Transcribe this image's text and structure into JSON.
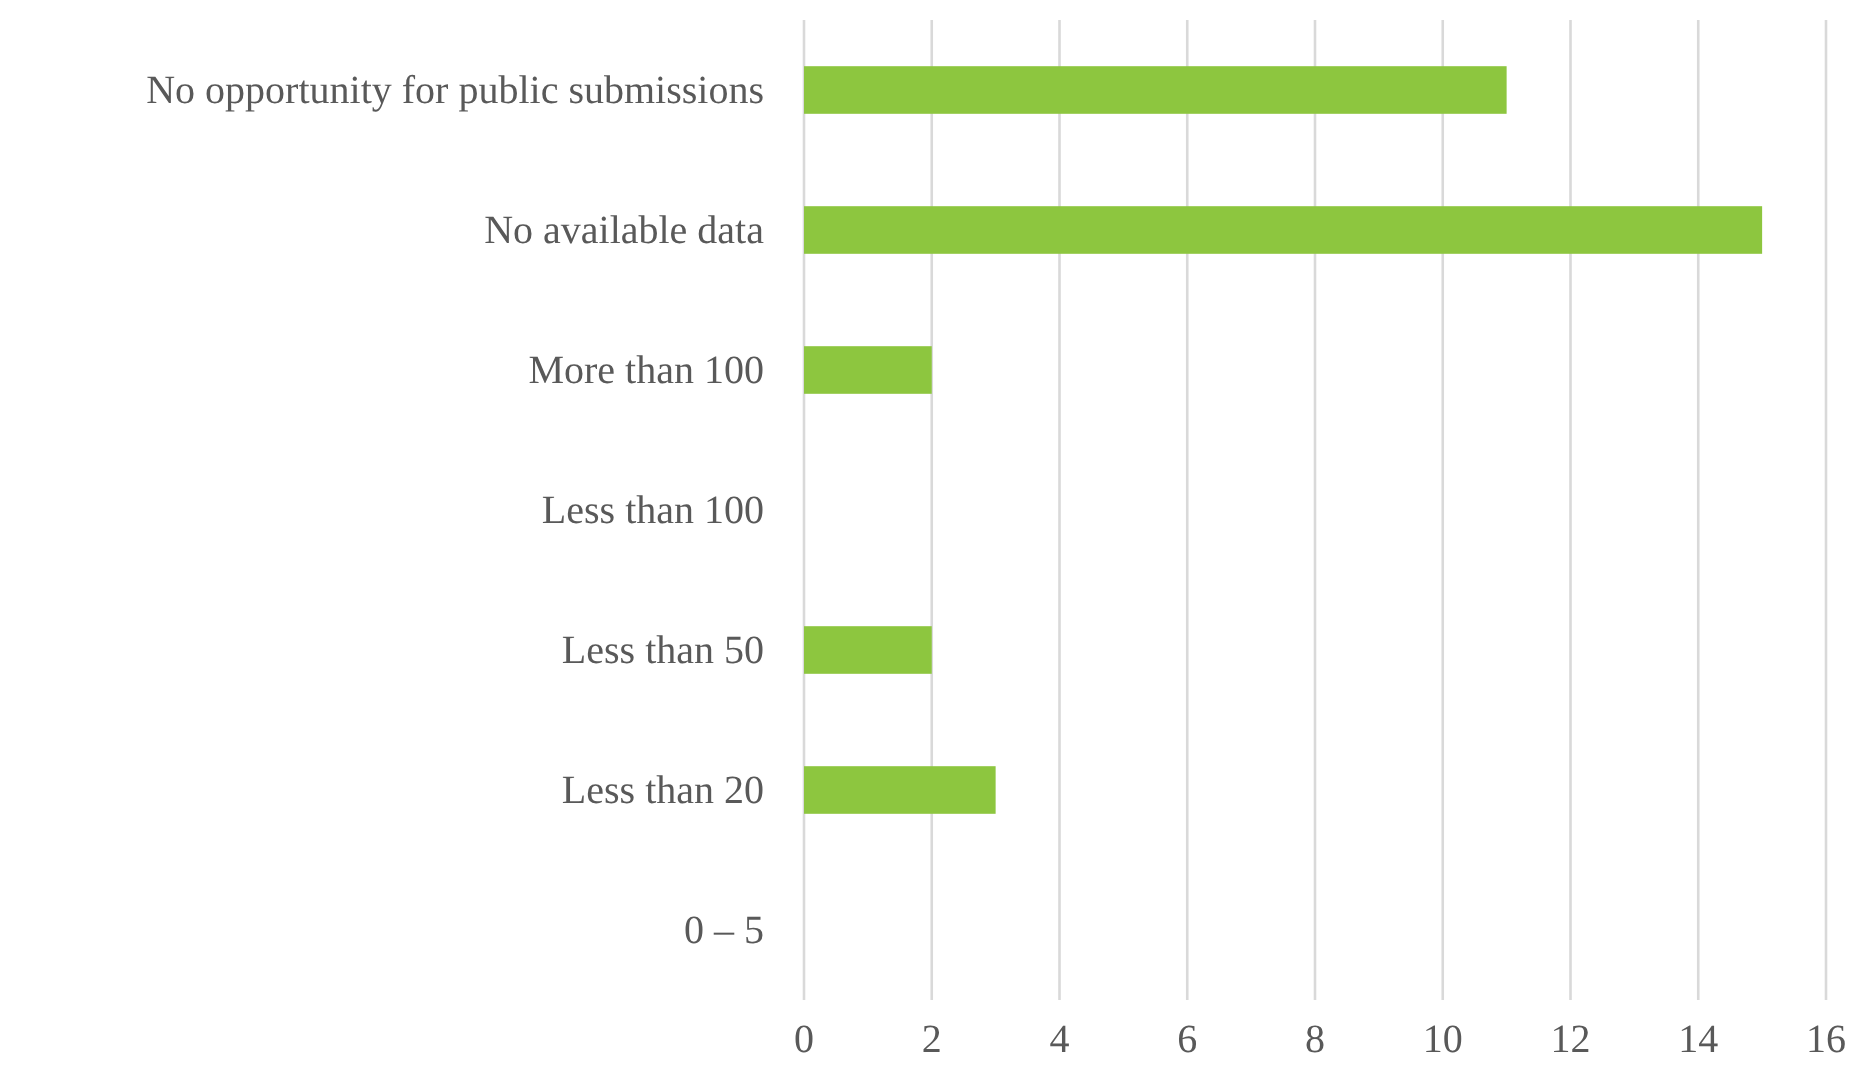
{
  "chart_data": {
    "type": "bar",
    "orientation": "horizontal",
    "categories": [
      "No opportunity for public submissions",
      "No available data",
      "More than 100",
      "Less than 100",
      "Less than 50",
      "Less than 20",
      "0 – 5"
    ],
    "values": [
      11,
      15,
      2,
      0,
      2,
      3,
      0
    ],
    "color": "#8dc63f",
    "xlim": [
      0,
      16
    ],
    "xticks": [
      0,
      2,
      4,
      6,
      8,
      10,
      12,
      14,
      16
    ],
    "grid": "x"
  }
}
